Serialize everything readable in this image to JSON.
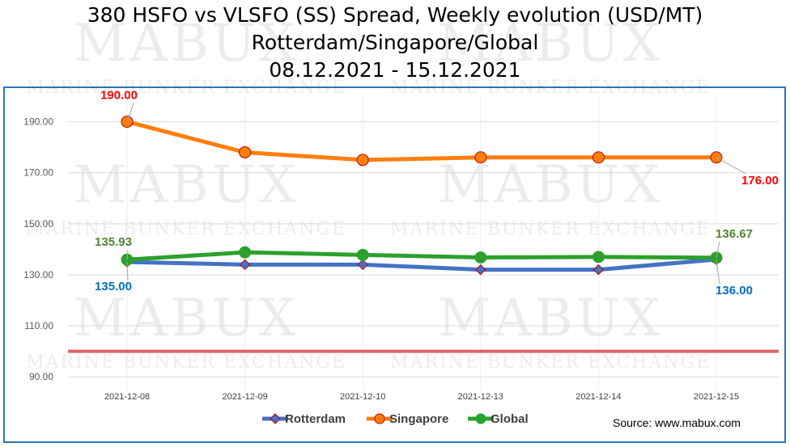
{
  "title_lines": [
    "380 HSFO vs VLSFO (SS) Spread, Weekly evolution (USD/MT)",
    "Rotterdam/Singapore/Global",
    "08.12.2021 - 15.12.2021"
  ],
  "watermark": {
    "brand": "MABUX",
    "subtitle": "MARINE BUNKER EXCHANGE"
  },
  "source": "Source: www.mabux.com",
  "colors": {
    "rotterdam": "#4472c4",
    "singapore": "#ff7f0e",
    "global": "#2ca02c",
    "marker_border": "#c00000",
    "label_rotterdam": "#0070c0",
    "label_singapore": "#ff0000",
    "label_global": "#548235",
    "reference_line": "#e06666",
    "frame": "#2e75b6"
  },
  "chart_data": {
    "type": "line",
    "categories": [
      "2021-12-08",
      "2021-12-09",
      "2021-12-10",
      "2021-12-13",
      "2021-12-14",
      "2021-12-15"
    ],
    "y_ticks": [
      "90.00",
      "110.00",
      "130.00",
      "150.00",
      "170.00",
      "190.00"
    ],
    "ylim": [
      85,
      200
    ],
    "grid": true,
    "legend_position": "bottom",
    "reference_line_value": 100,
    "series": [
      {
        "key": "rotterdam",
        "name": "Rotterdam",
        "marker": "diamond",
        "values": [
          135.0,
          134.0,
          134.0,
          132.0,
          132.0,
          136.0
        ],
        "data_labels": [
          {
            "index": 0,
            "text": "135.00",
            "placement": "below"
          },
          {
            "index": 5,
            "text": "136.00",
            "placement": "below"
          }
        ]
      },
      {
        "key": "singapore",
        "name": "Singapore",
        "marker": "circle",
        "values": [
          190.0,
          178.0,
          175.0,
          176.0,
          176.0,
          176.0
        ],
        "data_labels": [
          {
            "index": 0,
            "text": "190.00",
            "placement": "above"
          },
          {
            "index": 5,
            "text": "176.00",
            "placement": "below"
          }
        ]
      },
      {
        "key": "global",
        "name": "Global",
        "marker": "circle",
        "values": [
          135.93,
          138.8,
          137.8,
          136.8,
          137.0,
          136.67
        ],
        "data_labels": [
          {
            "index": 0,
            "text": "135.93",
            "placement": "above"
          },
          {
            "index": 5,
            "text": "136.67",
            "placement": "above"
          }
        ]
      }
    ]
  }
}
